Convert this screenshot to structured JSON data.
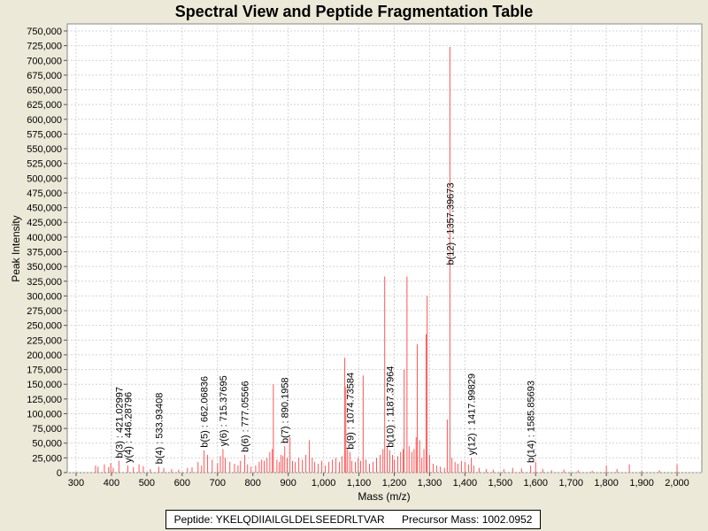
{
  "chart_data": {
    "type": "bar",
    "title": "Spectral View and Peptide Fragmentation Table",
    "xlabel": "Mass (m/z)",
    "ylabel": "Peak Intensity",
    "xlim": [
      275,
      2070
    ],
    "ylim": [
      0,
      762000
    ],
    "xticks": [
      300,
      400,
      500,
      600,
      700,
      800,
      900,
      1000,
      1100,
      1200,
      1300,
      1400,
      1500,
      1600,
      1700,
      1800,
      1900,
      2000
    ],
    "xtick_labels": [
      "300",
      "400",
      "500",
      "600",
      "700",
      "800",
      "900",
      "1,000",
      "1,100",
      "1,200",
      "1,300",
      "1,400",
      "1,500",
      "1,600",
      "1,700",
      "1,800",
      "1,900",
      "2,000"
    ],
    "yticks": [
      0,
      25000,
      50000,
      75000,
      100000,
      125000,
      150000,
      175000,
      200000,
      225000,
      250000,
      275000,
      300000,
      325000,
      350000,
      375000,
      400000,
      425000,
      450000,
      475000,
      500000,
      525000,
      550000,
      575000,
      600000,
      625000,
      650000,
      675000,
      700000,
      725000,
      750000
    ],
    "ytick_labels": [
      "0",
      "25,000",
      "50,000",
      "75,000",
      "100,000",
      "125,000",
      "150,000",
      "175,000",
      "200,000",
      "225,000",
      "250,000",
      "275,000",
      "300,000",
      "325,000",
      "350,000",
      "375,000",
      "400,000",
      "425,000",
      "450,000",
      "475,000",
      "500,000",
      "525,000",
      "550,000",
      "575,000",
      "600,000",
      "625,000",
      "650,000",
      "675,000",
      "700,000",
      "725,000",
      "750,000"
    ],
    "grid": true,
    "series_color": "#ff5555",
    "peaks": [
      [
        355,
        12000
      ],
      [
        362,
        10000
      ],
      [
        380,
        14000
      ],
      [
        392,
        9000
      ],
      [
        398,
        16000
      ],
      [
        405,
        8000
      ],
      [
        421.03,
        20000
      ],
      [
        446.29,
        12000
      ],
      [
        462,
        9000
      ],
      [
        478,
        14000
      ],
      [
        490,
        11000
      ],
      [
        510,
        6000
      ],
      [
        533.93,
        10000
      ],
      [
        548,
        8000
      ],
      [
        570,
        6000
      ],
      [
        590,
        5000
      ],
      [
        615,
        8000
      ],
      [
        628,
        9000
      ],
      [
        645,
        18000
      ],
      [
        655,
        12000
      ],
      [
        662.07,
        38000
      ],
      [
        672,
        30000
      ],
      [
        685,
        22000
      ],
      [
        700,
        16000
      ],
      [
        708,
        28000
      ],
      [
        715.38,
        40000
      ],
      [
        722,
        25000
      ],
      [
        735,
        18000
      ],
      [
        748,
        15000
      ],
      [
        758,
        12000
      ],
      [
        765,
        20000
      ],
      [
        777.06,
        30000
      ],
      [
        785,
        14000
      ],
      [
        795,
        10000
      ],
      [
        808,
        12000
      ],
      [
        818,
        18000
      ],
      [
        825,
        22000
      ],
      [
        832,
        20000
      ],
      [
        840,
        25000
      ],
      [
        848,
        35000
      ],
      [
        855,
        40000
      ],
      [
        858,
        150000
      ],
      [
        868,
        22000
      ],
      [
        875,
        18000
      ],
      [
        880,
        30000
      ],
      [
        885,
        28000
      ],
      [
        890.2,
        45000
      ],
      [
        897,
        25000
      ],
      [
        905,
        60000
      ],
      [
        912,
        20000
      ],
      [
        920,
        18000
      ],
      [
        930,
        25000
      ],
      [
        940,
        22000
      ],
      [
        950,
        30000
      ],
      [
        960,
        55000
      ],
      [
        968,
        25000
      ],
      [
        975,
        18000
      ],
      [
        985,
        15000
      ],
      [
        995,
        20000
      ],
      [
        1005,
        12000
      ],
      [
        1015,
        18000
      ],
      [
        1025,
        22000
      ],
      [
        1035,
        25000
      ],
      [
        1045,
        18000
      ],
      [
        1052,
        28000
      ],
      [
        1060,
        195000
      ],
      [
        1063,
        145000
      ],
      [
        1068,
        40000
      ],
      [
        1074.74,
        35000
      ],
      [
        1080,
        20000
      ],
      [
        1090,
        18000
      ],
      [
        1098,
        25000
      ],
      [
        1105,
        20000
      ],
      [
        1112,
        165000
      ],
      [
        1120,
        22000
      ],
      [
        1130,
        15000
      ],
      [
        1140,
        18000
      ],
      [
        1150,
        25000
      ],
      [
        1160,
        30000
      ],
      [
        1168,
        40000
      ],
      [
        1173,
        333000
      ],
      [
        1180,
        45000
      ],
      [
        1187.38,
        38000
      ],
      [
        1195,
        30000
      ],
      [
        1200,
        22000
      ],
      [
        1210,
        28000
      ],
      [
        1218,
        35000
      ],
      [
        1225,
        40000
      ],
      [
        1228,
        175000
      ],
      [
        1236,
        333000
      ],
      [
        1242,
        45000
      ],
      [
        1250,
        35000
      ],
      [
        1256,
        40000
      ],
      [
        1262,
        60000
      ],
      [
        1265,
        218000
      ],
      [
        1272,
        55000
      ],
      [
        1278,
        25000
      ],
      [
        1284,
        40000
      ],
      [
        1290,
        235000
      ],
      [
        1293,
        300000
      ],
      [
        1300,
        30000
      ],
      [
        1310,
        15000
      ],
      [
        1320,
        12000
      ],
      [
        1330,
        10000
      ],
      [
        1342,
        8000
      ],
      [
        1350,
        90000
      ],
      [
        1357.4,
        723000
      ],
      [
        1363,
        25000
      ],
      [
        1372,
        18000
      ],
      [
        1380,
        15000
      ],
      [
        1390,
        20000
      ],
      [
        1400,
        18000
      ],
      [
        1410,
        14000
      ],
      [
        1417.99,
        25000
      ],
      [
        1425,
        12000
      ],
      [
        1440,
        8000
      ],
      [
        1460,
        6000
      ],
      [
        1480,
        5000
      ],
      [
        1510,
        6000
      ],
      [
        1535,
        8000
      ],
      [
        1560,
        7000
      ],
      [
        1585.86,
        12000
      ],
      [
        1600,
        18000
      ],
      [
        1620,
        6000
      ],
      [
        1645,
        4000
      ],
      [
        1680,
        5000
      ],
      [
        1720,
        4000
      ],
      [
        1760,
        3000
      ],
      [
        1800,
        12000
      ],
      [
        1830,
        6000
      ],
      [
        1865,
        14000
      ],
      [
        1900,
        3000
      ],
      [
        1950,
        4000
      ],
      [
        2000,
        14000
      ]
    ],
    "annotations": [
      {
        "mz": 421.03,
        "label": "b(3) : 421.02997",
        "tip": 20000
      },
      {
        "mz": 446.29,
        "label": "y(4) : 446.28796",
        "tip": 12000
      },
      {
        "mz": 533.93,
        "label": "b(4) : 533.93408",
        "tip": 10000
      },
      {
        "mz": 662.07,
        "label": "b(5) : 662.06836",
        "tip": 38000
      },
      {
        "mz": 715.38,
        "label": "y(6) : 715.37695",
        "tip": 40000
      },
      {
        "mz": 777.06,
        "label": "b(6) : 777.05566",
        "tip": 30000
      },
      {
        "mz": 890.2,
        "label": "b(7) : 890.1958",
        "tip": 45000
      },
      {
        "mz": 1074.74,
        "label": "b(9) : 1074.73584",
        "tip": 35000
      },
      {
        "mz": 1187.38,
        "label": "b(10) : 1187.37964",
        "tip": 38000
      },
      {
        "mz": 1357.4,
        "label": "b(12) : 1357.39673",
        "tip": 348000
      },
      {
        "mz": 1417.99,
        "label": "y(12) : 1417.99829",
        "tip": 25000
      },
      {
        "mz": 1585.86,
        "label": "b(14) : 1585.85693",
        "tip": 12000
      }
    ]
  },
  "footer": {
    "peptide": "Peptide: YKELQDIIAILGLDELSEEDRLTVAR",
    "precursor": "Precursor Mass: 1002.0952"
  }
}
